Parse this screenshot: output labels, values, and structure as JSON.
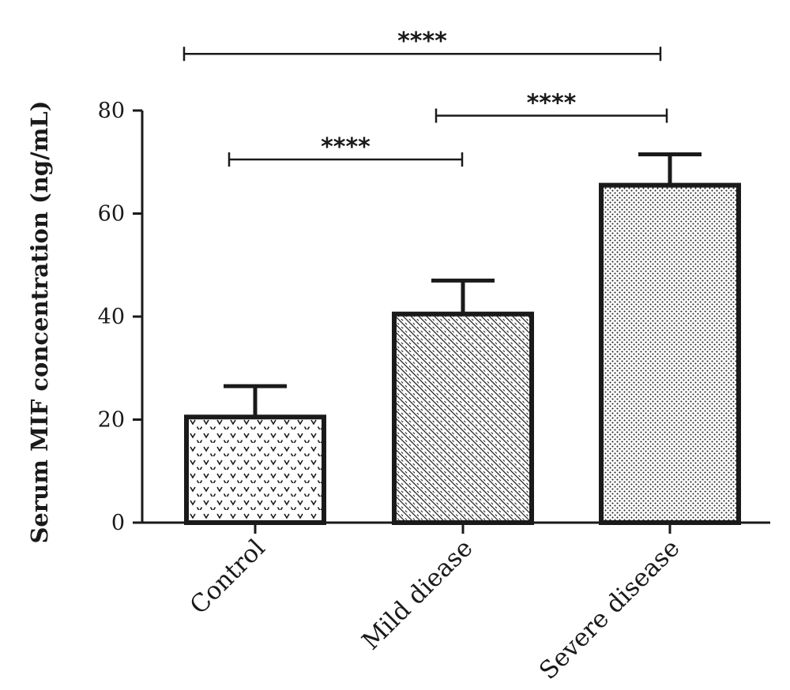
{
  "chart_data": {
    "type": "bar",
    "title": "",
    "xlabel": "",
    "ylabel": "Serum MIF concentration (ng/mL)",
    "ylim": [
      0,
      80
    ],
    "yticks": [
      0,
      20,
      40,
      60,
      80
    ],
    "categories": [
      "Control",
      "Mild diease",
      "Severe disease"
    ],
    "values": [
      20.5,
      40.5,
      65.5
    ],
    "errors": [
      6,
      6.5,
      6
    ],
    "patterns": [
      "chevron",
      "diagonal-hatch",
      "dots"
    ],
    "grid": false,
    "legend": "none",
    "significance": [
      {
        "from": 0,
        "to": 2,
        "label": "****",
        "level": 91
      },
      {
        "from": 1,
        "to": 2,
        "label": "****",
        "level": 79
      },
      {
        "from": 0,
        "to": 1,
        "label": "****",
        "level": 70.5
      }
    ]
  },
  "colors": {
    "ink": "#1a1a1a",
    "background": "#ffffff"
  }
}
